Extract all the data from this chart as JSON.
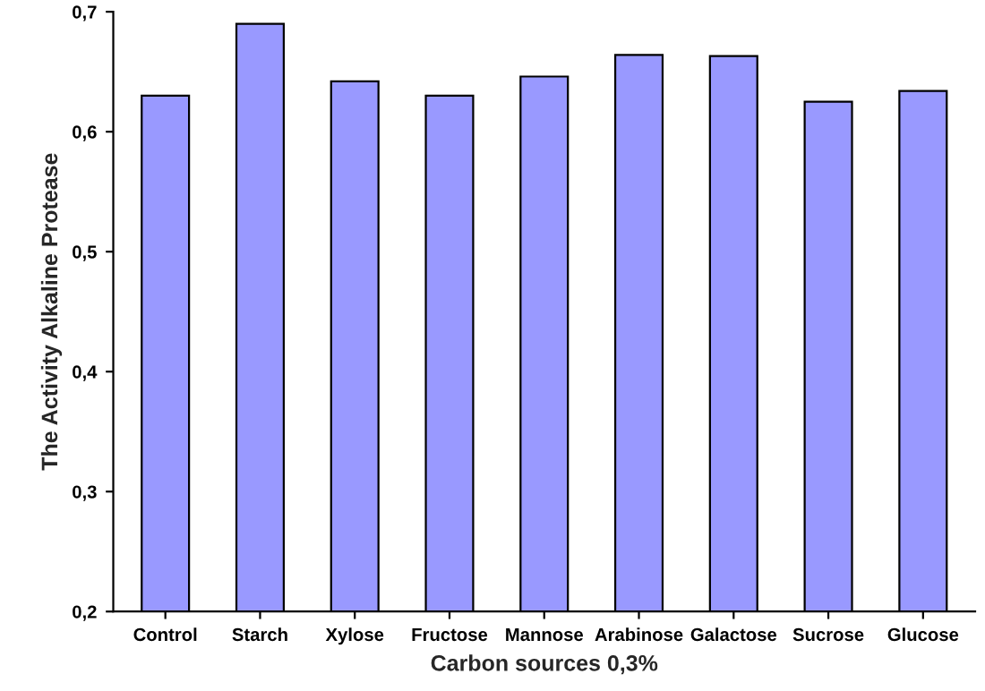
{
  "chart_data": {
    "type": "bar",
    "xlabel": "Carbon sources 0,3%",
    "ylabel": "The Activity Alkaline Protease",
    "categories": [
      "Control",
      "Starch",
      "Xylose",
      "Fructose",
      "Mannose",
      "Arabinose",
      "Galactose",
      "Sucrose",
      "Glucose"
    ],
    "values": [
      0.63,
      0.69,
      0.642,
      0.63,
      0.646,
      0.664,
      0.663,
      0.625,
      0.634
    ],
    "color": "#9999ff",
    "ylim": [
      0.2,
      0.7
    ],
    "yticks": [
      {
        "value": 0.2,
        "label": "0,2"
      },
      {
        "value": 0.3,
        "label": "0,3"
      },
      {
        "value": 0.4,
        "label": "0,4"
      },
      {
        "value": 0.5,
        "label": "0,5"
      },
      {
        "value": 0.6,
        "label": "0,6"
      },
      {
        "value": 0.7,
        "label": "0,7"
      }
    ],
    "grid": false
  }
}
